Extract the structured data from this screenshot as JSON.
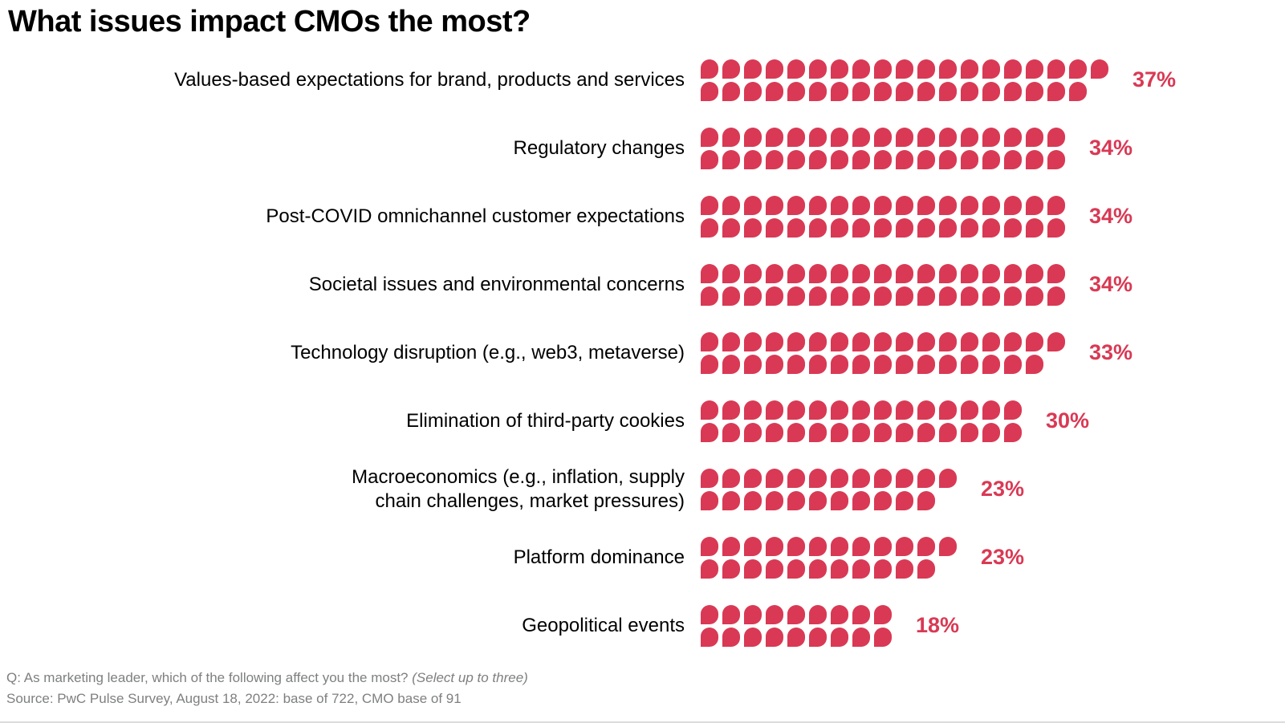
{
  "title": "What issues impact CMOs the most?",
  "footnote": {
    "question_prefix": "Q: As marketing leader, which of the following affect you the most? ",
    "question_note": "(Select up to three)",
    "source": "Source: PwC Pulse Survey, August 18, 2022: base of 722, CMO base of 91"
  },
  "colors": {
    "accent": "#D93954",
    "label_text": "#000000",
    "footnote_text": "#7E7F80"
  },
  "chart_data": {
    "type": "bar",
    "subtype": "pictogram-waffle",
    "orientation": "horizontal",
    "title": "What issues impact CMOs the most?",
    "unit_per_square_percent": 1,
    "rows_per_bar": 2,
    "legend": "none",
    "axes": "none",
    "categories": [
      "Values-based expectations for brand, products and services",
      "Regulatory changes",
      "Post-COVID omnichannel customer expectations",
      "Societal issues and environmental concerns",
      "Technology disruption (e.g., web3, metaverse)",
      "Elimination of third-party cookies",
      "Macroeconomics (e.g., inflation, supply chain challenges, market pressures)",
      "Platform dominance",
      "Geopolitical events"
    ],
    "values": [
      37,
      34,
      34,
      34,
      33,
      30,
      23,
      23,
      18
    ],
    "value_labels": [
      "37%",
      "34%",
      "34%",
      "34%",
      "33%",
      "30%",
      "23%",
      "23%",
      "18%"
    ],
    "label_lines": [
      [
        "Values-based expectations for brand, products and services"
      ],
      [
        "Regulatory changes"
      ],
      [
        "Post-COVID omnichannel customer expectations"
      ],
      [
        "Societal issues and environmental concerns"
      ],
      [
        "Technology disruption (e.g., web3, metaverse)"
      ],
      [
        "Elimination of third-party cookies"
      ],
      [
        "Macroeconomics (e.g., inflation, supply",
        "chain challenges, market pressures)"
      ],
      [
        "Platform dominance"
      ],
      [
        "Geopolitical events"
      ]
    ],
    "squares_top_row": [
      19,
      17,
      17,
      17,
      17,
      15,
      12,
      12,
      9
    ],
    "squares_bottom_row": [
      18,
      17,
      17,
      17,
      16,
      15,
      11,
      11,
      9
    ]
  }
}
